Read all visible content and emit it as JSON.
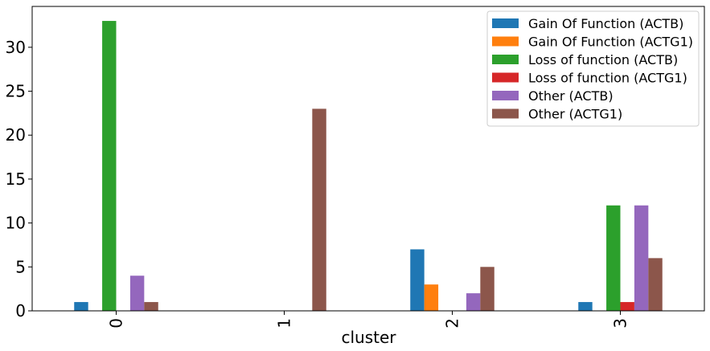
{
  "chart_data": {
    "type": "bar",
    "title": "",
    "xlabel": "cluster",
    "ylabel": "",
    "categories": [
      "0",
      "1",
      "2",
      "3"
    ],
    "ylim": [
      0,
      34.65
    ],
    "yticks": [
      0,
      5,
      10,
      15,
      20,
      25,
      30
    ],
    "grid": false,
    "legend_position": "top-right",
    "x_tick_rotation": "vertical",
    "series": [
      {
        "name": "Gain Of Function (ACTB)",
        "color": "#1f77b4",
        "values": [
          1,
          0,
          7,
          1
        ]
      },
      {
        "name": "Gain Of Function (ACTG1)",
        "color": "#ff7f0e",
        "values": [
          0,
          0,
          3,
          0
        ]
      },
      {
        "name": "Loss of function (ACTB)",
        "color": "#2ca02c",
        "values": [
          33,
          0,
          0,
          12
        ]
      },
      {
        "name": "Loss of function (ACTG1)",
        "color": "#d62728",
        "values": [
          0,
          0,
          0,
          1
        ]
      },
      {
        "name": "Other (ACTB)",
        "color": "#9467bd",
        "values": [
          4,
          0,
          2,
          12
        ]
      },
      {
        "name": "Other (ACTG1)",
        "color": "#8c564b",
        "values": [
          1,
          23,
          5,
          6
        ]
      }
    ]
  }
}
